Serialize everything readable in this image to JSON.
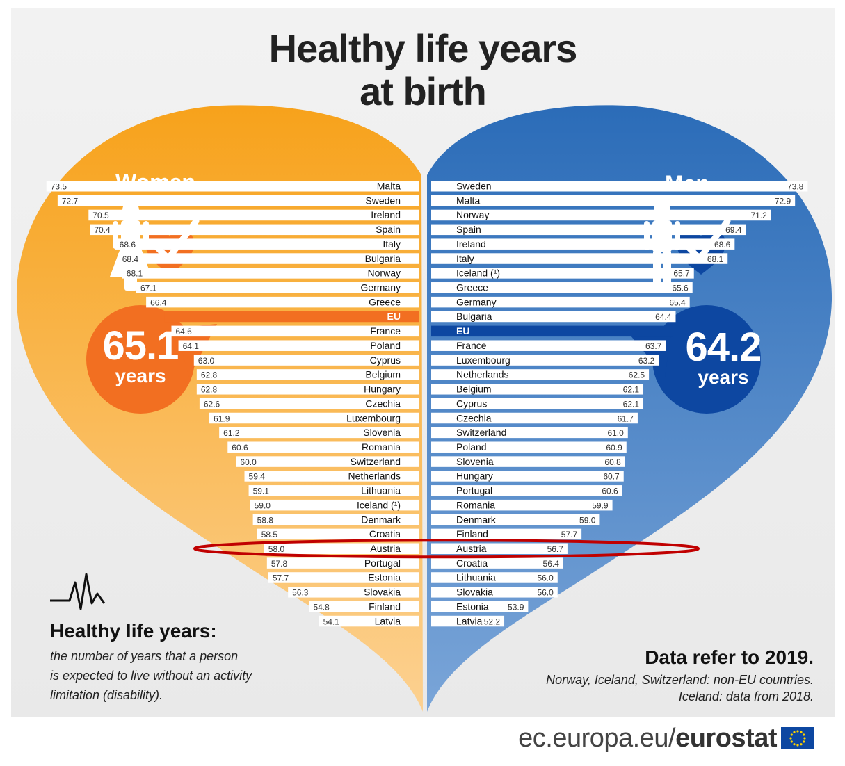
{
  "title_line1": "Healthy life years",
  "title_line2": "at birth",
  "women": {
    "label": "Women",
    "value": "65.1",
    "unit": "years"
  },
  "men": {
    "label": "Men",
    "value": "64.2",
    "unit": "years"
  },
  "definition": {
    "title": "Healthy life years:",
    "lines": [
      "the number of years that a person",
      "is expected to live without an activity",
      "limitation (disability)."
    ]
  },
  "notes": {
    "title": "Data refer to 2019.",
    "lines": [
      "Norway, Iceland, Switzerland: non-EU countries.",
      "Iceland: data from 2018."
    ]
  },
  "footer": {
    "prefix": "ec.europa.eu/",
    "brand": "eurostat"
  },
  "colors": {
    "women": "#f39a1f",
    "women_accent": "#f26f21",
    "men": "#2e6fbd",
    "men_accent": "#0d47a1",
    "highlight": "#c00000"
  },
  "icons": [
    "woman-icon",
    "heart-check-icon",
    "man-icon",
    "pulse-icon",
    "eu-flag-icon"
  ],
  "chart_data": {
    "type": "bar",
    "highlighted": "Austria",
    "series": [
      {
        "name": "Women",
        "eu_label": "EU",
        "eu_value": 65.1,
        "categories": [
          "Malta",
          "Sweden",
          "Ireland",
          "Spain",
          "Italy",
          "Bulgaria",
          "Norway",
          "Germany",
          "Greece",
          "EU",
          "France",
          "Poland",
          "Cyprus",
          "Belgium",
          "Hungary",
          "Czechia",
          "Luxembourg",
          "Slovenia",
          "Romania",
          "Switzerland",
          "Netherlands",
          "Lithuania",
          "Iceland (¹)",
          "Denmark",
          "Croatia",
          "Austria",
          "Portugal",
          "Estonia",
          "Slovakia",
          "Finland",
          "Latvia"
        ],
        "values": [
          73.5,
          72.7,
          70.5,
          70.4,
          68.6,
          68.4,
          68.1,
          67.1,
          66.4,
          65.1,
          64.6,
          64.1,
          63.0,
          62.8,
          62.8,
          62.6,
          61.9,
          61.2,
          60.6,
          60.0,
          59.4,
          59.1,
          59.0,
          58.8,
          58.5,
          58.0,
          57.8,
          57.7,
          56.3,
          54.8,
          54.1
        ],
        "labels": [
          "73.5",
          "72.7",
          "70.5",
          "70.4",
          "68.6",
          "68.4",
          "68.1",
          "67.1",
          "66.4",
          "",
          "64.6",
          "64.1",
          "63.0",
          "62.8",
          "62.8",
          "62.6",
          "61.9",
          "61.2",
          "60.6",
          "60.0",
          "59.4",
          "59.1",
          "59.0",
          "58.8",
          "58.5",
          "58.0",
          "57.8",
          "57.7",
          "56.3",
          "54.8",
          "54.1"
        ]
      },
      {
        "name": "Men",
        "eu_label": "EU",
        "eu_value": 64.2,
        "categories": [
          "Sweden",
          "Malta",
          "Norway",
          "Spain",
          "Ireland",
          "Italy",
          "Iceland (¹)",
          "Greece",
          "Germany",
          "Bulgaria",
          "EU",
          "France",
          "Luxembourg",
          "Netherlands",
          "Belgium",
          "Cyprus",
          "Czechia",
          "Switzerland",
          "Poland",
          "Slovenia",
          "Hungary",
          "Portugal",
          "Romania",
          "Denmark",
          "Finland",
          "Austria",
          "Croatia",
          "Lithuania",
          "Slovakia",
          "Estonia",
          "Latvia"
        ],
        "values": [
          73.8,
          72.9,
          71.2,
          69.4,
          68.6,
          68.1,
          65.7,
          65.6,
          65.4,
          64.4,
          64.2,
          63.7,
          63.2,
          62.5,
          62.1,
          62.1,
          61.7,
          61.0,
          60.9,
          60.8,
          60.7,
          60.6,
          59.9,
          59.0,
          57.7,
          56.7,
          56.4,
          56.0,
          56.0,
          53.9,
          52.2
        ],
        "labels": [
          "73.8",
          "72.9",
          "71.2",
          "69.4",
          "68.6",
          "68.1",
          "65.7",
          "65.6",
          "65.4",
          "64.4",
          "",
          "63.7",
          "63.2",
          "62.5",
          "62.1",
          "62.1",
          "61.7",
          "61.0",
          "60.9",
          "60.8",
          "60.7",
          "60.6",
          "59.9",
          "59.0",
          "57.7",
          "56.7",
          "56.4",
          "56.0",
          "56.0",
          "53.9",
          "52.2"
        ]
      }
    ]
  }
}
